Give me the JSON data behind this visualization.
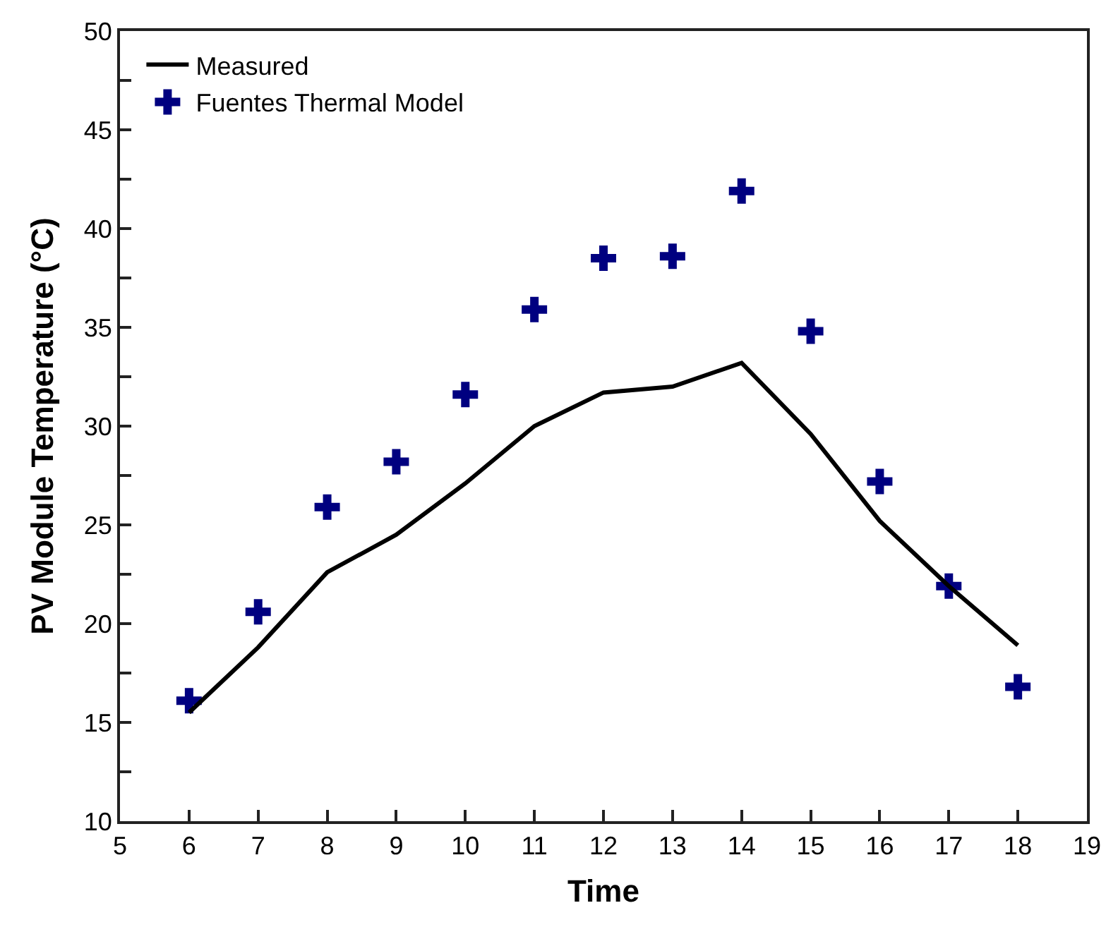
{
  "chart_data": {
    "type": "line",
    "xlabel": "Time",
    "ylabel": "PV Module Temperature (°C)",
    "x": [
      6,
      7,
      8,
      9,
      10,
      11,
      12,
      13,
      14,
      15,
      16,
      17,
      18
    ],
    "series": [
      {
        "name": "Measured",
        "color": "#000000",
        "marker": "none",
        "line_style": "solid",
        "values": [
          15.5,
          18.8,
          22.6,
          24.5,
          27.1,
          30.0,
          31.7,
          32.0,
          33.2,
          29.6,
          25.2,
          21.9,
          18.9
        ]
      },
      {
        "name": "Fuentes Thermal Model",
        "color": "#000080",
        "type": "scatter",
        "marker": "cross",
        "values": [
          16.1,
          20.6,
          25.9,
          28.2,
          31.6,
          35.9,
          38.5,
          38.6,
          41.9,
          34.8,
          27.2,
          21.9,
          16.8
        ]
      }
    ],
    "xlim": [
      5,
      19
    ],
    "xticks": [
      5,
      6,
      7,
      8,
      9,
      10,
      11,
      12,
      13,
      14,
      15,
      16,
      17,
      18,
      19
    ],
    "ylim": [
      10,
      50
    ],
    "yticks": [
      10,
      {
        "value": 12.5,
        "label": null
      },
      15,
      {
        "value": 17.5,
        "label": null
      },
      20,
      {
        "value": 22.5,
        "label": null
      },
      25,
      {
        "value": 27.5,
        "label": null
      },
      30,
      {
        "value": 32.5,
        "label": null
      },
      35,
      {
        "value": 37.5,
        "label": null
      },
      40,
      {
        "value": 42.5,
        "label": null
      },
      45,
      {
        "value": 47.5,
        "label": null
      },
      50
    ],
    "legend": "top left"
  }
}
